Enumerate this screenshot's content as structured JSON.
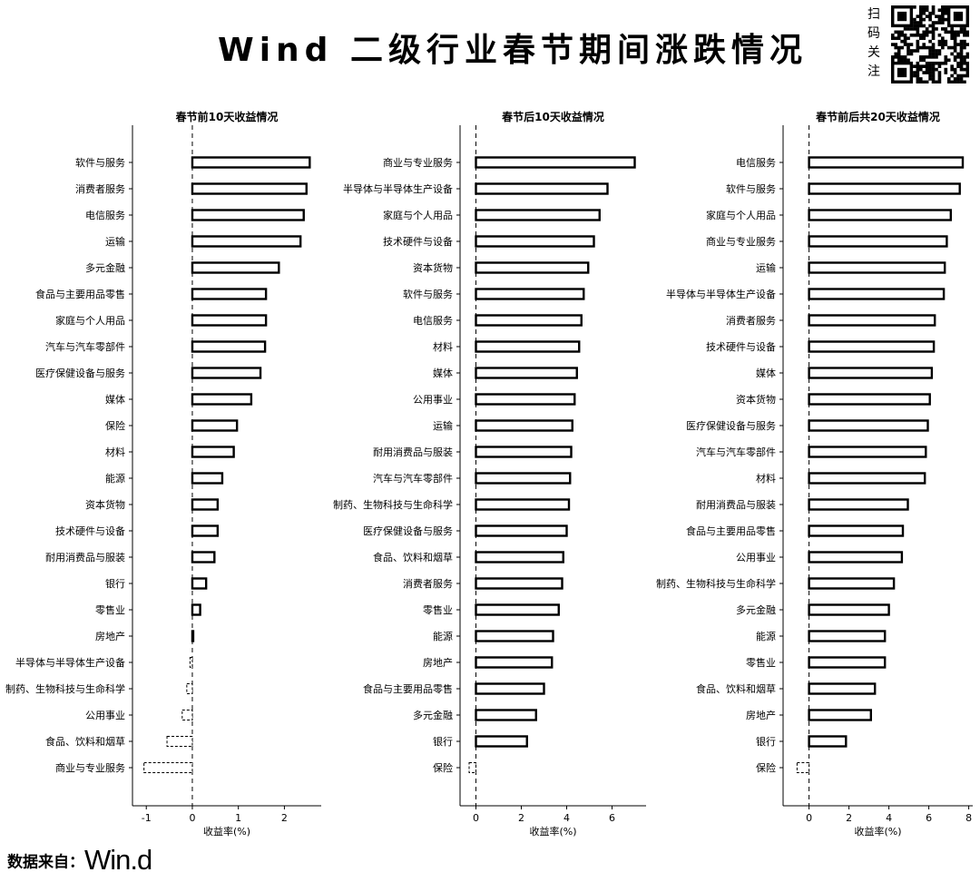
{
  "header": {
    "title": "Wind 二级行业春节期间涨跌情况",
    "qr_caption": [
      "扫",
      "码",
      "关",
      "注"
    ]
  },
  "footer": {
    "source_label": "数据来自：",
    "source_brand": "Win.d"
  },
  "colors": {
    "bar_fill": "#ffffff",
    "bar_stroke": "#000000",
    "axis": "#000000"
  },
  "chart_data": [
    {
      "type": "bar",
      "orientation": "horizontal",
      "title": "春节前10天收益情况",
      "xlabel": "收益率(%)",
      "xlim": [
        -1.3,
        2.8
      ],
      "xticks": [
        -1,
        0,
        1,
        2
      ],
      "categories": [
        "软件与服务",
        "消费者服务",
        "电信服务",
        "运输",
        "多元金融",
        "食品与主要用品零售",
        "家庭与个人用品",
        "汽车与汽车零部件",
        "医疗保健设备与服务",
        "媒体",
        "保险",
        "材料",
        "能源",
        "资本货物",
        "技术硬件与设备",
        "耐用消费品与服装",
        "银行",
        "零售业",
        "房地产",
        "半导体与半导体生产设备",
        "制药、生物科技与生命科学",
        "公用事业",
        "食品、饮料和烟草",
        "商业与专业服务"
      ],
      "values": [
        2.55,
        2.48,
        2.42,
        2.35,
        1.88,
        1.6,
        1.6,
        1.58,
        1.48,
        1.28,
        0.97,
        0.9,
        0.65,
        0.55,
        0.55,
        0.48,
        0.3,
        0.17,
        0.0,
        -0.05,
        -0.12,
        -0.22,
        -0.55,
        -1.05
      ]
    },
    {
      "type": "bar",
      "orientation": "horizontal",
      "title": "春节后10天收益情况",
      "xlabel": "收益率(%)",
      "xlim": [
        -0.7,
        7.5
      ],
      "xticks": [
        0,
        2,
        4,
        6
      ],
      "categories": [
        "商业与专业服务",
        "半导体与半导体生产设备",
        "家庭与个人用品",
        "技术硬件与设备",
        "资本货物",
        "软件与服务",
        "电信服务",
        "材料",
        "媒体",
        "公用事业",
        "运输",
        "耐用消费品与服装",
        "汽车与汽车零部件",
        "制药、生物科技与生命科学",
        "医疗保健设备与服务",
        "食品、饮料和烟草",
        "消费者服务",
        "零售业",
        "能源",
        "房地产",
        "食品与主要用品零售",
        "多元金融",
        "银行",
        "保险"
      ],
      "values": [
        7.0,
        5.8,
        5.45,
        5.2,
        4.95,
        4.75,
        4.65,
        4.55,
        4.45,
        4.35,
        4.25,
        4.2,
        4.15,
        4.1,
        4.0,
        3.85,
        3.8,
        3.65,
        3.4,
        3.35,
        3.0,
        2.65,
        2.25,
        -0.3
      ]
    },
    {
      "type": "bar",
      "orientation": "horizontal",
      "title": "春节前后共20天收益情况",
      "xlabel": "收益率(%)",
      "xlim": [
        -1.3,
        8.2
      ],
      "xticks": [
        0,
        2,
        4,
        6,
        8
      ],
      "categories": [
        "电信服务",
        "软件与服务",
        "家庭与个人用品",
        "商业与专业服务",
        "运输",
        "半导体与半导体生产设备",
        "消费者服务",
        "技术硬件与设备",
        "媒体",
        "资本货物",
        "医疗保健设备与服务",
        "汽车与汽车零部件",
        "材料",
        "耐用消费品与服装",
        "食品与主要用品零售",
        "公用事业",
        "制药、生物科技与生命科学",
        "多元金融",
        "能源",
        "零售业",
        "食品、饮料和烟草",
        "房地产",
        "银行",
        "保险"
      ],
      "values": [
        7.7,
        7.55,
        7.1,
        6.9,
        6.8,
        6.75,
        6.3,
        6.25,
        6.15,
        6.05,
        5.95,
        5.85,
        5.8,
        4.95,
        4.7,
        4.65,
        4.25,
        4.0,
        3.8,
        3.8,
        3.3,
        3.1,
        1.85,
        -0.6
      ]
    }
  ]
}
